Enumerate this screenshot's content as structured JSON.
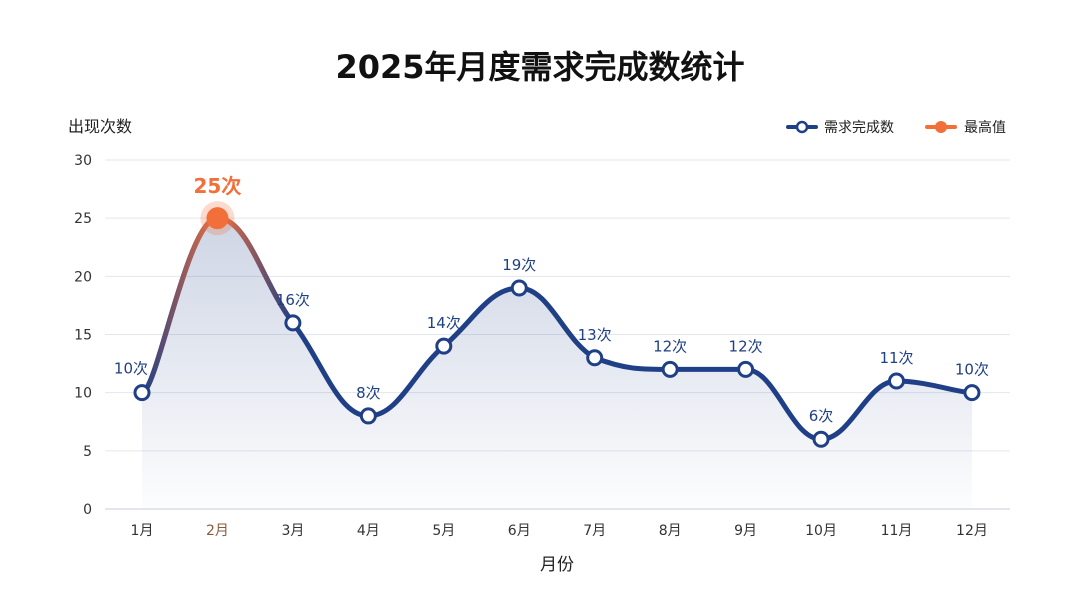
{
  "chart_data": {
    "type": "line",
    "title": "2025年月度需求完成数统计",
    "xlabel": "月份",
    "ylabel": "出现次数",
    "categories": [
      "1月",
      "2月",
      "3月",
      "4月",
      "5月",
      "6月",
      "7月",
      "8月",
      "9月",
      "10月",
      "11月",
      "12月"
    ],
    "series": [
      {
        "name": "需求完成数",
        "values": [
          10,
          25,
          16,
          8,
          14,
          19,
          13,
          12,
          12,
          6,
          11,
          10
        ]
      }
    ],
    "data_labels": [
      "10次",
      "25次",
      "16次",
      "8次",
      "14次",
      "19次",
      "13次",
      "12次",
      "12次",
      "6次",
      "11次",
      "10次"
    ],
    "highlight": {
      "legend_label": "最高值",
      "category": "2月",
      "value": 25,
      "label": "25次"
    },
    "yticks": [
      0,
      5,
      10,
      15,
      20,
      25,
      30
    ],
    "ylim": [
      0,
      30
    ],
    "grid": true,
    "legend_position": "top-right",
    "colors": {
      "series": "#1f3f86",
      "highlight": "#f26f3a",
      "grid": "#e3e6ee",
      "axis_text": "#333333",
      "title": "#111111",
      "highlight_tick": "#8a5a3b"
    }
  }
}
